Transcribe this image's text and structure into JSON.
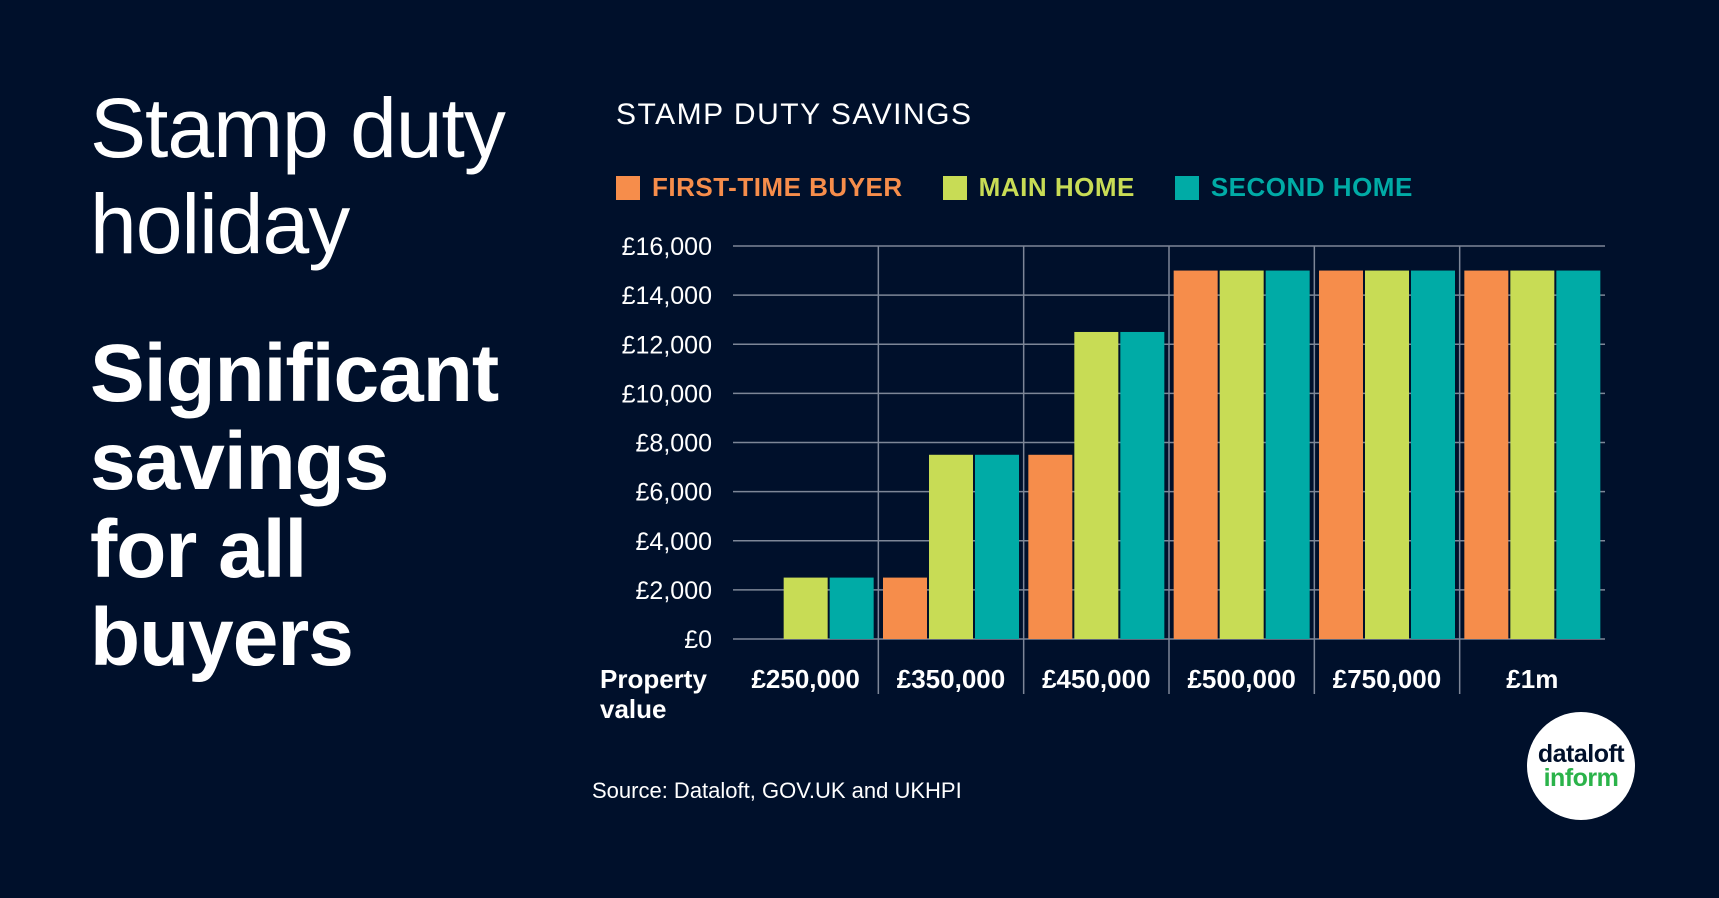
{
  "headline": "Stamp duty\nholiday",
  "subheadline": "Significant\nsavings\nfor all\nbuyers",
  "source": "Source: Dataloft, GOV.UK and UKHPI",
  "logo": {
    "top": "dataloft",
    "bottom": "inform"
  },
  "colors": {
    "background": "#00102b",
    "first_time_buyer": "#f68d4b",
    "main_home": "#c8dc55",
    "second_home": "#00aba6"
  },
  "chart_data": {
    "type": "bar",
    "title": "STAMP DUTY SAVINGS",
    "xlabel": "Property\nvalue",
    "ylabel": "",
    "ylim": [
      0,
      16000
    ],
    "yticks": [
      "£0",
      "£2,000",
      "£4,000",
      "£6,000",
      "£8,000",
      "£10,000",
      "£12,000",
      "£14,000",
      "£16,000"
    ],
    "categories": [
      "£250,000",
      "£350,000",
      "£450,000",
      "£500,000",
      "£750,000",
      "£1m"
    ],
    "series": [
      {
        "name": "FIRST-TIME BUYER",
        "color": "#f68d4b",
        "values": [
          0,
          2500,
          7500,
          15000,
          15000,
          15000
        ]
      },
      {
        "name": "MAIN HOME",
        "color": "#c8dc55",
        "values": [
          2500,
          7500,
          12500,
          15000,
          15000,
          15000
        ]
      },
      {
        "name": "SECOND HOME",
        "color": "#00aba6",
        "values": [
          2500,
          7500,
          12500,
          15000,
          15000,
          15000
        ]
      }
    ],
    "grid": true,
    "legend": "top"
  }
}
